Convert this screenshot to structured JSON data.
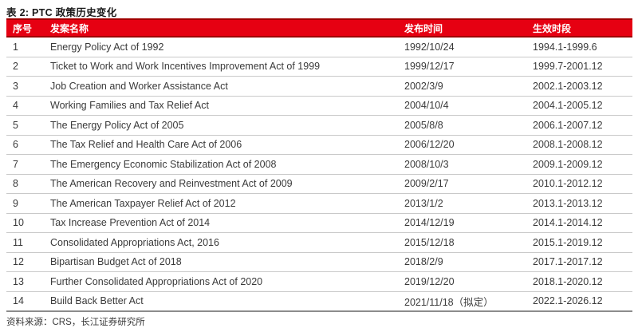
{
  "title": "表 2: PTC 政策历史变化",
  "table": {
    "headers": {
      "no": "序号",
      "name": "发案名称",
      "published": "发布时间",
      "effective": "生效时段"
    },
    "rows": [
      {
        "no": "1",
        "name": "Energy Policy Act of 1992",
        "published": "1992/10/24",
        "effective": "1994.1-1999.6"
      },
      {
        "no": "2",
        "name": "Ticket to Work and Work Incentives Improvement Act of 1999",
        "published": "1999/12/17",
        "effective": "1999.7-2001.12"
      },
      {
        "no": "3",
        "name": "Job Creation and Worker Assistance Act",
        "published": "2002/3/9",
        "effective": "2002.1-2003.12"
      },
      {
        "no": "4",
        "name": "Working Families and Tax Relief Act",
        "published": "2004/10/4",
        "effective": "2004.1-2005.12"
      },
      {
        "no": "5",
        "name": "The Energy Policy Act of 2005",
        "published": "2005/8/8",
        "effective": "2006.1-2007.12"
      },
      {
        "no": "6",
        "name": "The Tax Relief and Health Care Act of 2006",
        "published": "2006/12/20",
        "effective": "2008.1-2008.12"
      },
      {
        "no": "7",
        "name": "The Emergency Economic Stabilization Act of 2008",
        "published": "2008/10/3",
        "effective": "2009.1-2009.12"
      },
      {
        "no": "8",
        "name": "The American Recovery and Reinvestment Act of 2009",
        "published": "2009/2/17",
        "effective": "2010.1-2012.12"
      },
      {
        "no": "9",
        "name": "The American Taxpayer Relief Act of 2012",
        "published": "2013/1/2",
        "effective": "2013.1-2013.12"
      },
      {
        "no": "10",
        "name": "Tax Increase Prevention Act of 2014",
        "published": "2014/12/19",
        "effective": "2014.1-2014.12"
      },
      {
        "no": "11",
        "name": "Consolidated Appropriations Act, 2016",
        "published": "2015/12/18",
        "effective": "2015.1-2019.12"
      },
      {
        "no": "12",
        "name": "Bipartisan Budget Act of 2018",
        "published": "2018/2/9",
        "effective": "2017.1-2017.12"
      },
      {
        "no": "13",
        "name": "Further Consolidated Appropriations Act of 2020",
        "published": "2019/12/20",
        "effective": "2018.1-2020.12"
      },
      {
        "no": "14",
        "name": "Build Back Better Act",
        "published": "2021/11/18（拟定）",
        "effective": "2022.1-2026.12"
      }
    ]
  },
  "footer": {
    "source": "资料来源：CRS，长江证券研究所"
  },
  "colors": {
    "header_bg": "#e60012",
    "header_border": "#a00000",
    "row_divider": "#c9c9c9",
    "table_bottom_border": "#8c8c8c",
    "body_text": "#3a3a3a"
  }
}
